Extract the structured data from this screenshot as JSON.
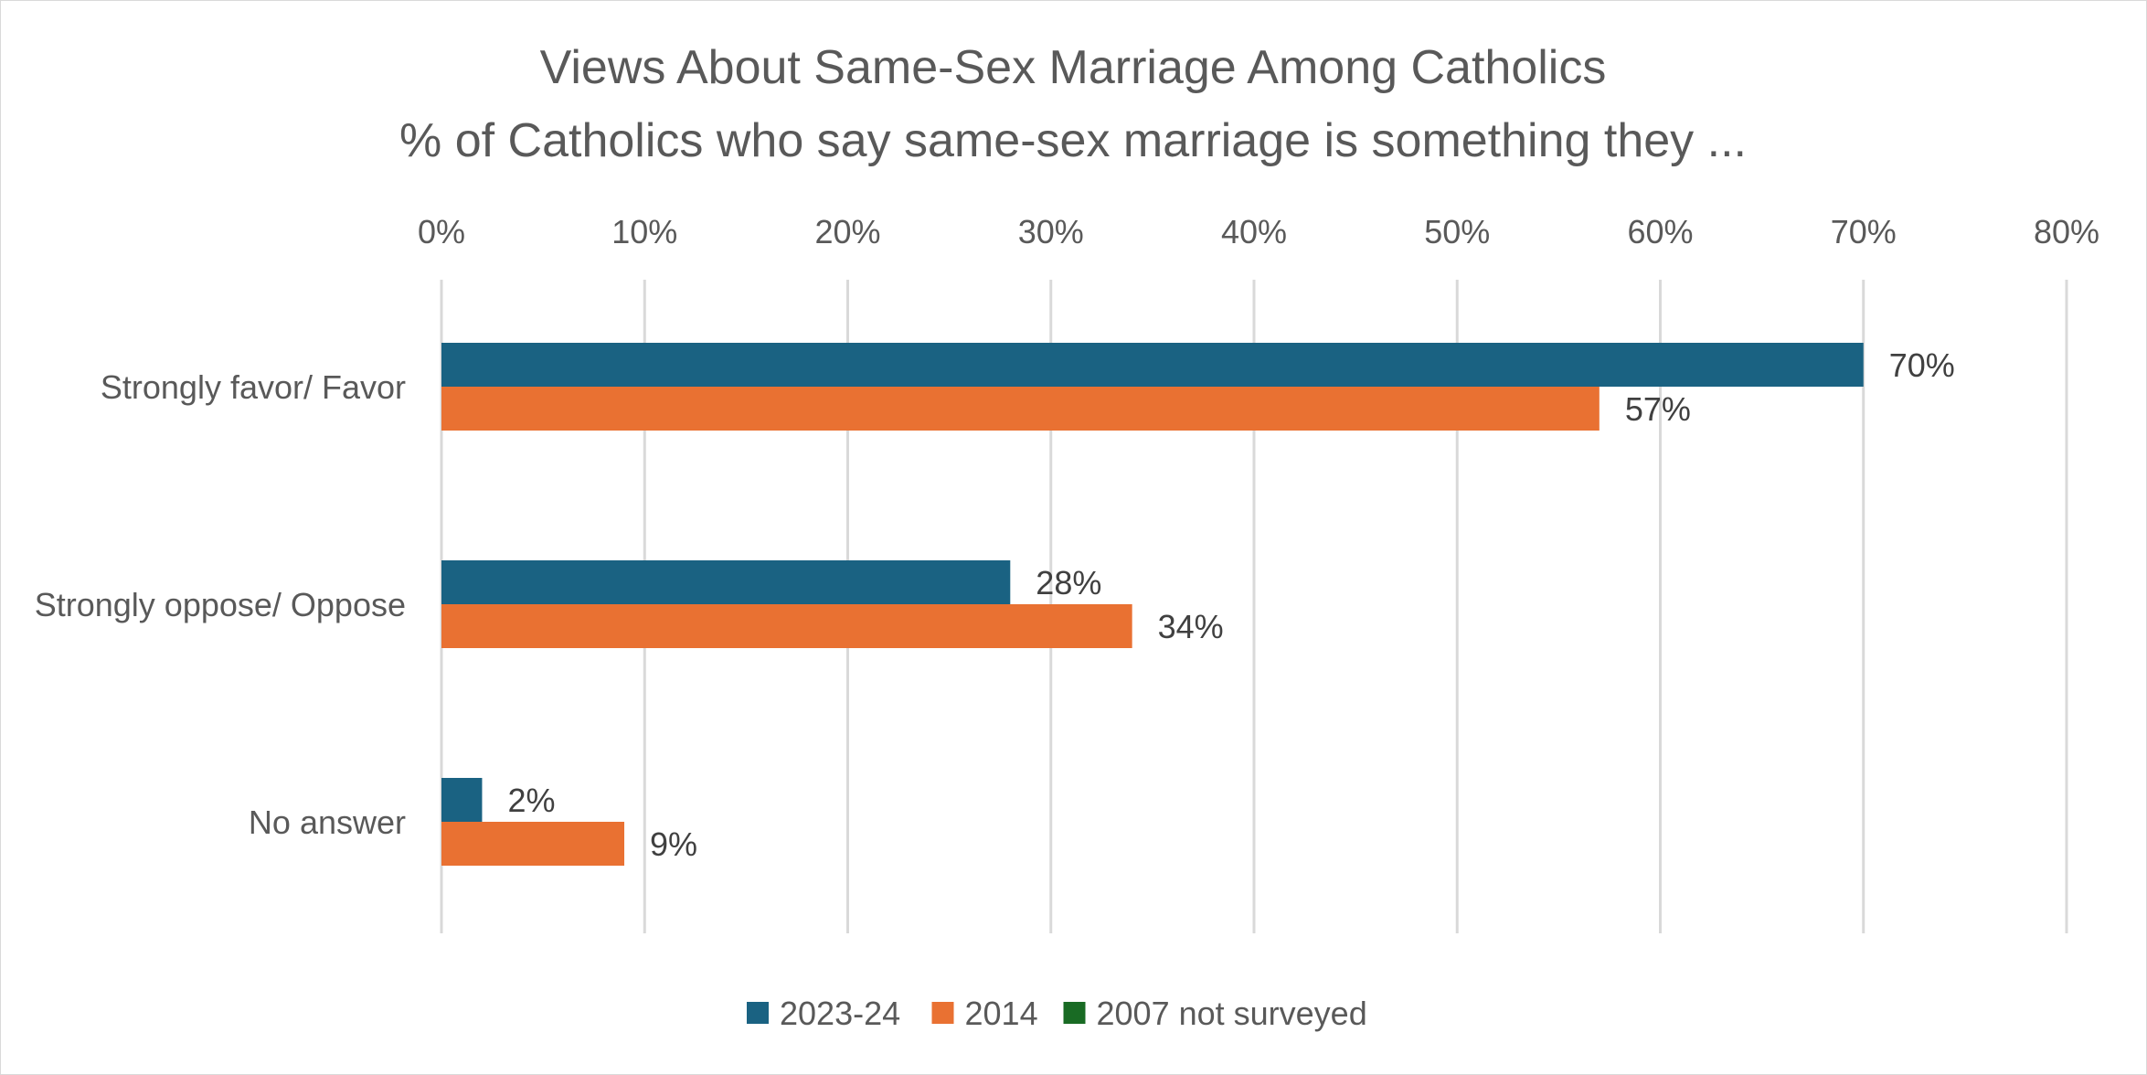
{
  "chart_data": {
    "type": "bar",
    "orientation": "horizontal",
    "title": "Views About Same-Sex Marriage Among Catholics",
    "subtitle": "% of Catholics who say same-sex marriage is something they ...",
    "categories": [
      "Strongly favor/ Favor",
      "Strongly oppose/ Oppose",
      "No answer"
    ],
    "series": [
      {
        "name": "2023-24",
        "color": "#1a6282",
        "values": [
          70,
          28,
          2
        ],
        "labels": [
          "70%",
          "28%",
          "2%"
        ]
      },
      {
        "name": "2014",
        "color": "#e97132",
        "values": [
          57,
          34,
          9
        ],
        "labels": [
          "57%",
          "34%",
          "9%"
        ]
      },
      {
        "name": "2007 not surveyed",
        "color": "#196b24",
        "values": [
          null,
          null,
          null
        ],
        "labels": [
          "",
          "",
          ""
        ]
      }
    ],
    "xlim": [
      0,
      80
    ],
    "ticks": [
      0,
      10,
      20,
      30,
      40,
      50,
      60,
      70,
      80
    ],
    "tick_labels": [
      "0%",
      "10%",
      "20%",
      "30%",
      "40%",
      "50%",
      "60%",
      "70%",
      "80%"
    ],
    "x_axis_position": "top",
    "grid": true,
    "legend_position": "bottom"
  }
}
